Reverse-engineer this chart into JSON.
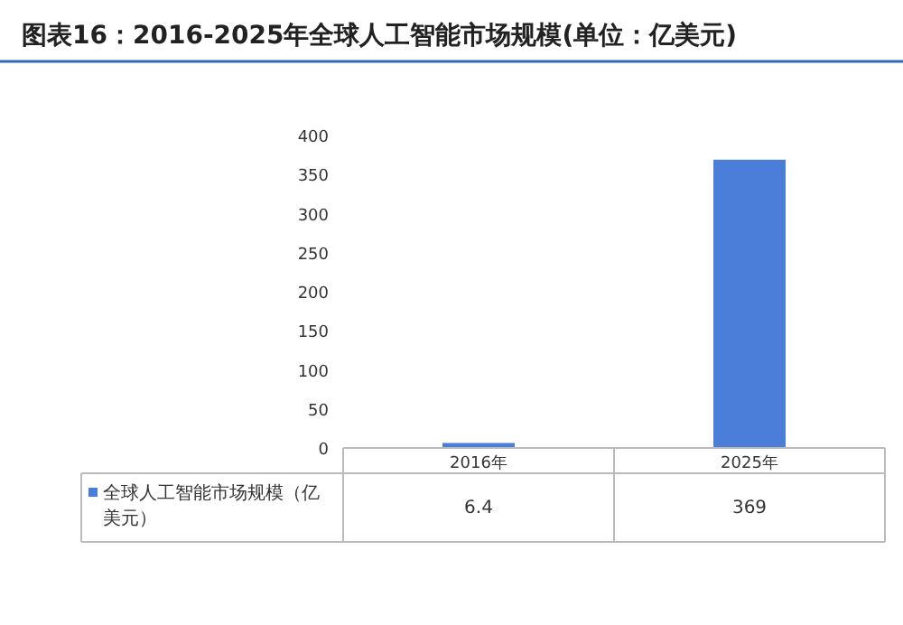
{
  "chart_data": {
    "type": "bar",
    "title": "图表16：2016-2025年全球人工智能市场规模(单位：亿美元)",
    "categories": [
      "2016年",
      "2025年"
    ],
    "series": [
      {
        "name": "全球人工智能市场规模（亿美元）",
        "color": "#4a7ed8",
        "values": [
          6.4,
          369
        ]
      }
    ],
    "ylim": [
      0,
      400
    ],
    "yticks": [
      0,
      50,
      100,
      150,
      200,
      250,
      300,
      350,
      400
    ],
    "data_labels": true,
    "grid": false
  }
}
